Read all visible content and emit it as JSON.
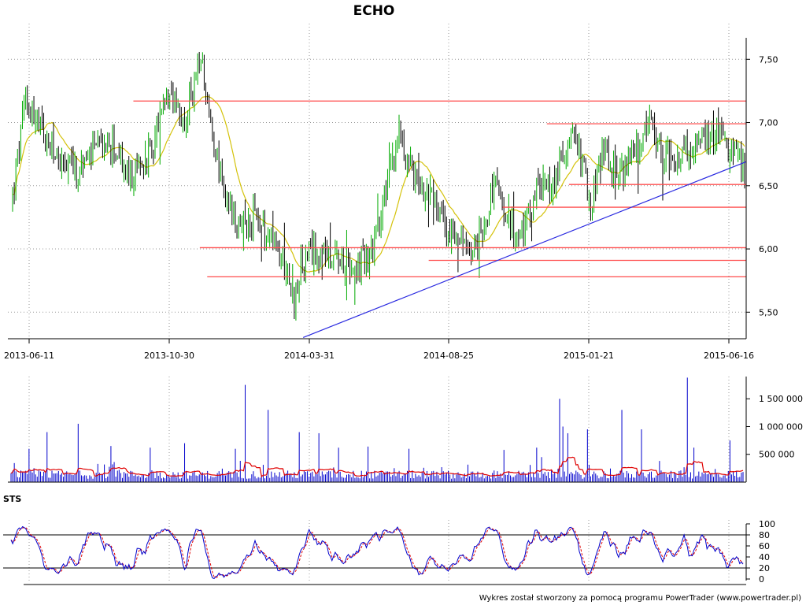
{
  "chart_data": [
    {
      "id": "price",
      "type": "candlestick",
      "title": "ECHO",
      "x_tick_labels": [
        "2013-06-11",
        "2013-10-30",
        "2014-03-31",
        "2014-08-25",
        "2015-01-21",
        "2015-06-16"
      ],
      "y_tick_labels": [
        "7,50",
        "7,00",
        "6,50",
        "6,00",
        "5,50"
      ],
      "y_ticks": [
        7.5,
        7.0,
        6.5,
        6.0,
        5.5
      ],
      "ylim": [
        5.29,
        7.67
      ],
      "grid": true,
      "anchors": [
        [
          0,
          6.4
        ],
        [
          8,
          7.2
        ],
        [
          18,
          6.9
        ],
        [
          28,
          6.7
        ],
        [
          40,
          6.6
        ],
        [
          52,
          6.85
        ],
        [
          62,
          6.8
        ],
        [
          72,
          6.55
        ],
        [
          82,
          6.7
        ],
        [
          94,
          7.15
        ],
        [
          105,
          7.0
        ],
        [
          115,
          7.5
        ],
        [
          122,
          6.9
        ],
        [
          130,
          6.4
        ],
        [
          138,
          6.15
        ],
        [
          148,
          6.25
        ],
        [
          160,
          6.0
        ],
        [
          168,
          5.85
        ],
        [
          172,
          5.55
        ],
        [
          176,
          5.85
        ],
        [
          186,
          6.0
        ],
        [
          198,
          5.95
        ],
        [
          210,
          5.85
        ],
        [
          220,
          6.0
        ],
        [
          230,
          6.55
        ],
        [
          236,
          6.9
        ],
        [
          246,
          6.55
        ],
        [
          256,
          6.4
        ],
        [
          266,
          6.15
        ],
        [
          276,
          6.0
        ],
        [
          284,
          6.05
        ],
        [
          294,
          6.5
        ],
        [
          302,
          6.2
        ],
        [
          310,
          6.1
        ],
        [
          320,
          6.45
        ],
        [
          330,
          6.5
        ],
        [
          340,
          6.9
        ],
        [
          348,
          6.7
        ],
        [
          352,
          6.3
        ],
        [
          360,
          6.75
        ],
        [
          372,
          6.6
        ],
        [
          382,
          6.8
        ],
        [
          388,
          7.0
        ],
        [
          396,
          6.7
        ],
        [
          408,
          6.75
        ],
        [
          418,
          6.8
        ],
        [
          430,
          6.9
        ],
        [
          440,
          6.75
        ],
        [
          447,
          6.65
        ]
      ],
      "sma": {
        "color": "#d4c20a",
        "window": 20
      },
      "candle_colors": {
        "up": "#00aa00",
        "down": "#000000"
      },
      "horizontal_lines": [
        {
          "y": 7.17,
          "from": 0.17,
          "to": 1.0,
          "color": "#ff4d4d"
        },
        {
          "y": 6.99,
          "from": 0.73,
          "to": 1.0,
          "color": "#ff4d4d"
        },
        {
          "y": 6.51,
          "from": 0.76,
          "to": 1.0,
          "color": "#ff4d4d"
        },
        {
          "y": 6.33,
          "from": 0.67,
          "to": 1.0,
          "color": "#ff4d4d"
        },
        {
          "y": 6.01,
          "from": 0.26,
          "to": 1.0,
          "color": "#ff4d4d"
        },
        {
          "y": 5.91,
          "from": 0.57,
          "to": 1.0,
          "color": "#ff4d4d"
        },
        {
          "y": 5.78,
          "from": 0.27,
          "to": 1.0,
          "color": "#ff4d4d"
        }
      ],
      "trend_line": {
        "from": [
          0.4,
          5.3
        ],
        "to": [
          1.0,
          6.69
        ],
        "color": "#2a2ae0"
      }
    },
    {
      "id": "volume",
      "type": "bar",
      "y_tick_labels": [
        "1 500 000",
        "1 000 000",
        "500 000"
      ],
      "y_ticks": [
        1500000,
        1000000,
        500000
      ],
      "ylim": [
        0,
        1900000
      ],
      "bar_color": "#0000cc",
      "avg_color": "#e00000",
      "spikes": [
        [
          36,
          600000
        ],
        [
          60,
          900000
        ],
        [
          100,
          1050000
        ],
        [
          140,
          650000
        ],
        [
          190,
          620000
        ],
        [
          235,
          700000
        ],
        [
          300,
          600000
        ],
        [
          312,
          1750000
        ],
        [
          340,
          1300000
        ],
        [
          380,
          900000
        ],
        [
          405,
          880000
        ],
        [
          430,
          620000
        ],
        [
          468,
          640000
        ],
        [
          520,
          600000
        ],
        [
          640,
          580000
        ],
        [
          682,
          620000
        ],
        [
          710,
          1500000
        ],
        [
          715,
          1000000
        ],
        [
          721,
          880000
        ],
        [
          746,
          950000
        ],
        [
          790,
          1300000
        ],
        [
          815,
          950000
        ],
        [
          874,
          1880000
        ],
        [
          882,
          620000
        ],
        [
          928,
          750000
        ]
      ]
    },
    {
      "id": "sts",
      "type": "line",
      "label": "STS",
      "y_tick_labels": [
        "100",
        "80",
        "60",
        "40",
        "20",
        "0"
      ],
      "y_ticks": [
        100,
        80,
        60,
        40,
        20,
        0
      ],
      "ylim": [
        0,
        100
      ],
      "levels": [
        80,
        20
      ],
      "series": [
        {
          "color": "#0000cc"
        },
        {
          "color": "#e00000",
          "dashed": true
        }
      ]
    }
  ],
  "credit": "Wykres został stworzony za pomocą programu PowerTrader (www.powertrader.pl)"
}
